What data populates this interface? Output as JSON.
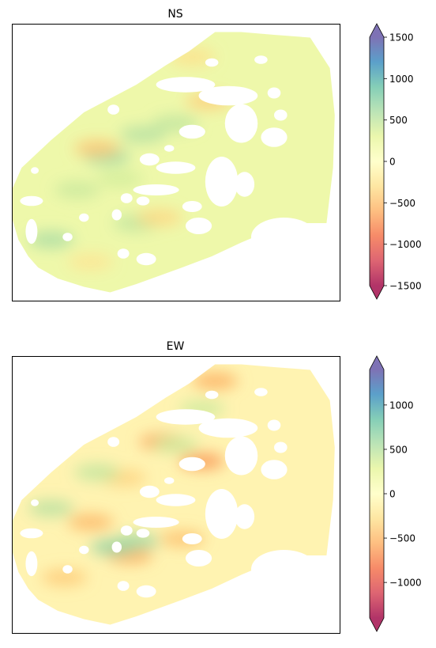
{
  "chart_data": [
    {
      "type": "heatmap",
      "title": "NS",
      "xlabel": "",
      "ylabel": "",
      "colormap": "Spectral",
      "colorbar_ticks": [
        1500,
        1000,
        500,
        0,
        -500,
        -1000,
        -1500
      ],
      "colorbar_tick_labels": [
        "1500",
        "1000",
        "500",
        "0",
        "−500",
        "−1000",
        "−1500"
      ],
      "value_range": [
        -1500,
        1500
      ],
      "colorbar_extend": "both",
      "grid": false,
      "blobs": [
        {
          "value": 650,
          "lon": 0.29,
          "lat": 0.48
        },
        {
          "value": 550,
          "lon": 0.4,
          "lat": 0.4
        },
        {
          "value": 600,
          "lon": 0.12,
          "lat": 0.78
        },
        {
          "value": 500,
          "lon": 0.38,
          "lat": 0.72
        },
        {
          "value": 450,
          "lon": 0.2,
          "lat": 0.6
        },
        {
          "value": 500,
          "lon": 0.5,
          "lat": 0.36
        },
        {
          "value": 400,
          "lon": 0.33,
          "lat": 0.56
        },
        {
          "value": -450,
          "lon": 0.26,
          "lat": 0.45
        },
        {
          "value": -400,
          "lon": 0.6,
          "lat": 0.28
        },
        {
          "value": -350,
          "lon": 0.45,
          "lat": 0.7
        },
        {
          "value": -300,
          "lon": 0.55,
          "lat": 0.12
        },
        {
          "value": -250,
          "lon": 0.24,
          "lat": 0.86
        }
      ]
    },
    {
      "type": "heatmap",
      "title": "EW",
      "xlabel": "",
      "ylabel": "",
      "colormap": "Spectral",
      "colorbar_ticks": [
        1000,
        500,
        0,
        -500,
        -1000
      ],
      "colorbar_tick_labels": [
        "1000",
        "500",
        "0",
        "−500",
        "−1000"
      ],
      "value_range": [
        -1400,
        1400
      ],
      "colorbar_extend": "both",
      "grid": false,
      "blobs": [
        {
          "value": -650,
          "lon": 0.58,
          "lat": 0.38
        },
        {
          "value": -600,
          "lon": 0.46,
          "lat": 0.31
        },
        {
          "value": -550,
          "lon": 0.62,
          "lat": 0.09
        },
        {
          "value": -500,
          "lon": 0.24,
          "lat": 0.6
        },
        {
          "value": -550,
          "lon": 0.36,
          "lat": 0.72
        },
        {
          "value": -450,
          "lon": 0.52,
          "lat": 0.66
        },
        {
          "value": -400,
          "lon": 0.16,
          "lat": 0.8
        },
        {
          "value": -350,
          "lon": 0.34,
          "lat": 0.44
        },
        {
          "value": 650,
          "lon": 0.31,
          "lat": 0.69
        },
        {
          "value": 600,
          "lon": 0.38,
          "lat": 0.67
        },
        {
          "value": 500,
          "lon": 0.12,
          "lat": 0.55
        },
        {
          "value": 450,
          "lon": 0.26,
          "lat": 0.42
        },
        {
          "value": 400,
          "lon": 0.5,
          "lat": 0.32
        },
        {
          "value": 400,
          "lon": 0.58,
          "lat": 0.19
        }
      ]
    }
  ]
}
